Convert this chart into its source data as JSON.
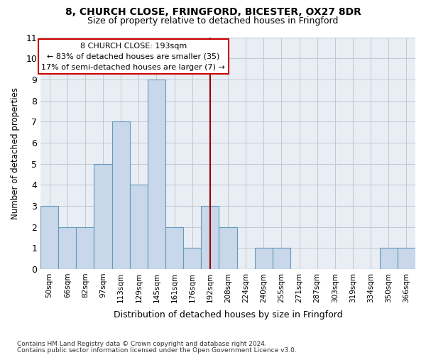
{
  "title1": "8, CHURCH CLOSE, FRINGFORD, BICESTER, OX27 8DR",
  "title2": "Size of property relative to detached houses in Fringford",
  "xlabel": "Distribution of detached houses by size in Fringford",
  "ylabel": "Number of detached properties",
  "footnote1": "Contains HM Land Registry data © Crown copyright and database right 2024.",
  "footnote2": "Contains public sector information licensed under the Open Government Licence v3.0.",
  "bin_labels": [
    "50sqm",
    "66sqm",
    "82sqm",
    "97sqm",
    "113sqm",
    "129sqm",
    "145sqm",
    "161sqm",
    "176sqm",
    "192sqm",
    "208sqm",
    "224sqm",
    "240sqm",
    "255sqm",
    "271sqm",
    "287sqm",
    "303sqm",
    "319sqm",
    "334sqm",
    "350sqm",
    "366sqm"
  ],
  "bar_values": [
    3,
    2,
    2,
    5,
    7,
    4,
    9,
    2,
    1,
    3,
    2,
    0,
    1,
    1,
    0,
    0,
    0,
    0,
    0,
    1,
    1
  ],
  "bar_color": "#c8d8ea",
  "bar_edge_color": "#6699bb",
  "highlight_line_index": 9,
  "highlight_line_color": "#990000",
  "annotation_text_line1": "8 CHURCH CLOSE: 193sqm",
  "annotation_text_line2": "← 83% of detached houses are smaller (35)",
  "annotation_text_line3": "17% of semi-detached houses are larger (7) →",
  "annotation_box_color": "#cc0000",
  "ylim": [
    0,
    11
  ],
  "yticks": [
    0,
    1,
    2,
    3,
    4,
    5,
    6,
    7,
    8,
    9,
    10,
    11
  ],
  "grid_color": "#c0c8d0",
  "bg_color": "#e8eef4",
  "fig_width": 6.0,
  "fig_height": 5.0,
  "title1_fontsize": 10,
  "title2_fontsize": 9
}
